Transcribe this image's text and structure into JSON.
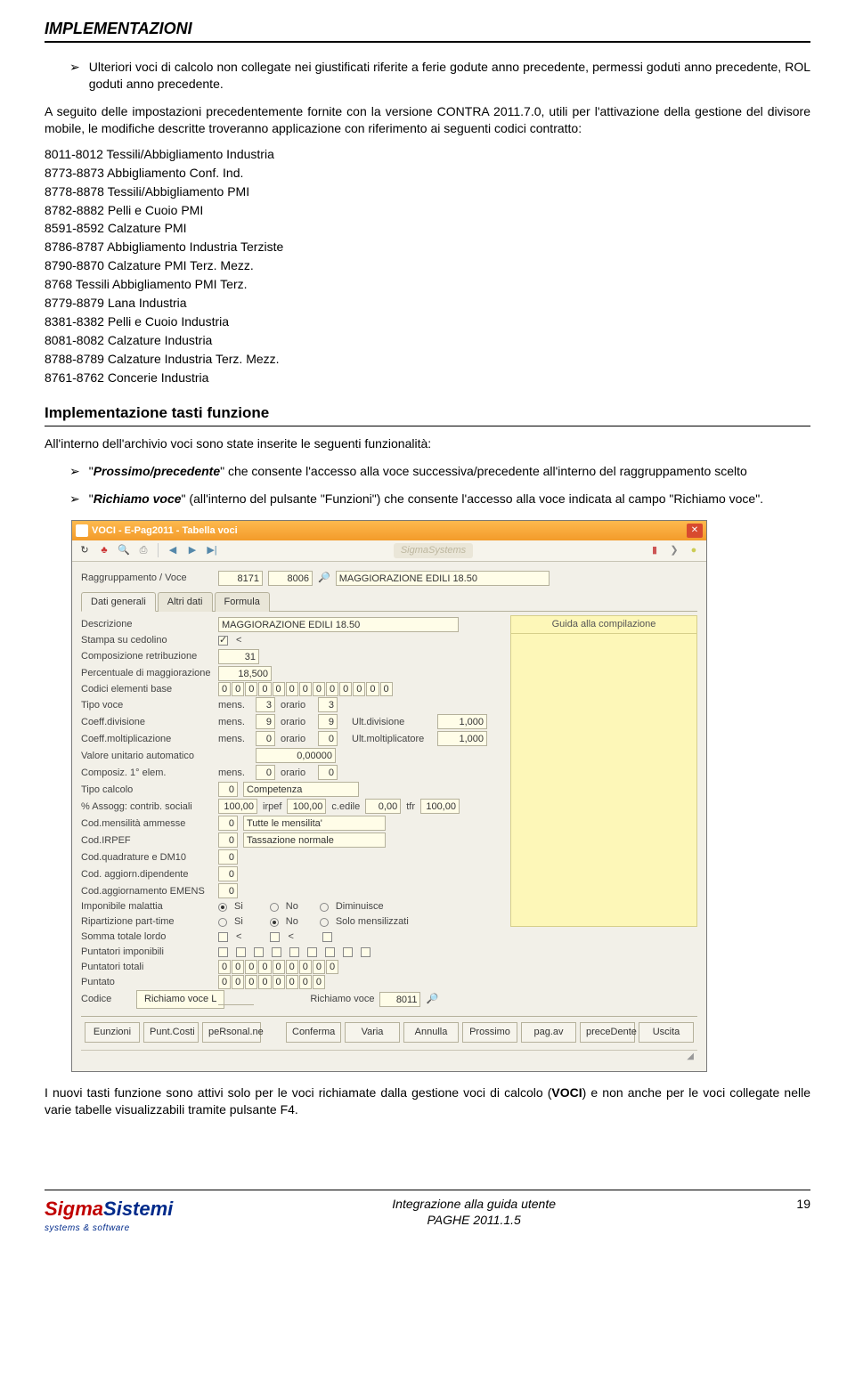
{
  "header": {
    "title": "IMPLEMENTAZIONI"
  },
  "intro_bullet": "Ulteriori voci di calcolo non collegate nei giustificati riferite a ferie godute anno precedente, permessi goduti anno precedente, ROL goduti anno precedente.",
  "para1": "A seguito delle impostazioni precedentemente fornite con la versione CONTRA 2011.7.0, utili per l'attivazione della gestione del divisore mobile, le modifiche descritte troveranno applicazione con riferimento ai seguenti codici contratto:",
  "codes": [
    "8011-8012 Tessili/Abbigliamento Industria",
    "8773-8873 Abbigliamento Conf. Ind.",
    "8778-8878 Tessili/Abbigliamento PMI",
    "8782-8882 Pelli e Cuoio PMI",
    "8591-8592 Calzature PMI",
    "8786-8787 Abbigliamento Industria Terziste",
    "8790-8870 Calzature PMI Terz. Mezz.",
    "8768 Tessili Abbigliamento PMI Terz.",
    "8779-8879 Lana Industria",
    "8381-8382 Pelli e Cuoio Industria",
    "8081-8082 Calzature Industria",
    "8788-8789 Calzature Industria Terz. Mezz.",
    "8761-8762 Concerie Industria"
  ],
  "section2": {
    "heading": "Implementazione tasti funzione",
    "intro": "All'interno dell'archivio voci sono state inserite le seguenti funzionalità:",
    "bullets": [
      {
        "bold": "Prossimo/precedente",
        "rest": "\" che consente l'accesso alla voce successiva/precedente all'interno del raggruppamento scelto"
      },
      {
        "bold": "Richiamo voce",
        "rest": "\" (all'interno del pulsante \"Funzioni\") che consente l'accesso alla voce indicata al campo \"Richiamo voce\"."
      }
    ],
    "closing": "I nuovi tasti funzione sono attivi solo per le voci richiamate dalla gestione voci di calcolo (VOCI) e non anche per le voci collegate nelle varie tabelle visualizzabili tramite pulsante F4."
  },
  "screenshot": {
    "title": "VOCI - E-Pag2011  -  Tabella voci",
    "brand": "SigmaSystems",
    "top_row": {
      "label": "Raggruppamento / Voce",
      "v1": "8171",
      "v2": "8006",
      "desc": "MAGGIORAZIONE EDILI 18.50"
    },
    "tabs": [
      "Dati generali",
      "Altri dati",
      "Formula"
    ],
    "guide": "Guida alla compilazione",
    "fields": {
      "descrizione": {
        "label": "Descrizione",
        "value": "MAGGIORAZIONE EDILI 18.50"
      },
      "stampa": {
        "label": "Stampa su cedolino",
        "value": "<"
      },
      "comp_retr": {
        "label": "Composizione retribuzione",
        "value": "31"
      },
      "perc_magg": {
        "label": "Percentuale di maggiorazione",
        "value": "18,500"
      },
      "cod_elem": {
        "label": "Codici elementi base",
        "values": [
          "0",
          "0",
          "0",
          "0",
          "0",
          "0",
          "0",
          "0",
          "0",
          "0",
          "0",
          "0",
          "0"
        ]
      },
      "tipo_voce": {
        "label": "Tipo voce",
        "sub": "mens.",
        "v1": "3",
        "v2": "orario",
        "v3": "3"
      },
      "coeff_div": {
        "label": "Coeff.divisione",
        "sub": "mens.",
        "v1": "9",
        "v2": "orario",
        "v3": "9",
        "rlabel": "Ult.divisione",
        "rval": "1,000"
      },
      "coeff_molt": {
        "label": "Coeff.moltiplicazione",
        "sub": "mens.",
        "v1": "0",
        "v2": "orario",
        "v3": "0",
        "rlabel": "Ult.moltiplicatore",
        "rval": "1,000"
      },
      "val_unit": {
        "label": "Valore unitario automatico",
        "value": "0,00000"
      },
      "composiz": {
        "label": "Composiz. 1° elem.",
        "sub": "mens.",
        "v1": "0",
        "v2": "orario",
        "v3": "0"
      },
      "tipo_calc": {
        "label": "Tipo calcolo",
        "v1": "0",
        "v2": "Competenza"
      },
      "assogg": {
        "label": "% Assogg:  contrib. sociali",
        "v1": "100,00",
        "l2": "irpef",
        "v2": "100,00",
        "l3": "c.edile",
        "v3": "0,00",
        "l4": "tfr",
        "v4": "100,00"
      },
      "cod_mens": {
        "label": "Cod.mensilità ammesse",
        "v1": "0",
        "v2": "Tutte le mensilita'"
      },
      "cod_irpef": {
        "label": "Cod.IRPEF",
        "v1": "0",
        "v2": "Tassazione normale"
      },
      "cod_quad": {
        "label": "Cod.quadrature e DM10",
        "v1": "0"
      },
      "cod_agg_dip": {
        "label": "Cod. aggiorn.dipendente",
        "v1": "0"
      },
      "cod_agg_emens": {
        "label": "Cod.aggiornamento EMENS",
        "v1": "0"
      },
      "imp_mal": {
        "label": "Imponibile malattia",
        "r1": "Si",
        "r2": "No",
        "r3": "Diminuisce"
      },
      "rip_pt": {
        "label": "Ripartizione part-time",
        "r1": "Si",
        "r2": "No",
        "r3": "Solo mensilizzati"
      },
      "somma": {
        "label": "Somma totale lordo",
        "c1": "<",
        "c2": "<"
      },
      "punt_imp": {
        "label": "Puntatori imponibili"
      },
      "punt_tot": {
        "label": "Puntatori totali",
        "values": [
          "0",
          "0",
          "0",
          "0",
          "0",
          "0",
          "0",
          "0",
          "0"
        ]
      },
      "puntato": {
        "label": "Puntato",
        "values": [
          "0",
          "0",
          "0",
          "0",
          "0",
          "0",
          "0",
          "0"
        ]
      },
      "codice": {
        "label": "Codice"
      },
      "callout": "Richiamo voce  L",
      "richiamo": {
        "label": "Richiamo voce",
        "value": "8011"
      }
    },
    "buttons": [
      "Eunzioni",
      "Punt.Costi",
      "peRsonal.ne",
      "Conferma",
      "Varia",
      "Annulla",
      "Prossimo",
      "pag.av",
      "preceDente",
      "Uscita"
    ]
  },
  "footer": {
    "logo1": "Sigma",
    "logo2": "Sistemi",
    "logo_sub": "systems & software",
    "center1": "Integrazione alla guida utente",
    "center2": "PAGHE 2011.1.5",
    "page": "19"
  },
  "colors": {
    "accent_red": "#d00000",
    "panel_yellow": "#fdf7b8",
    "field_bg": "#fffde8"
  }
}
